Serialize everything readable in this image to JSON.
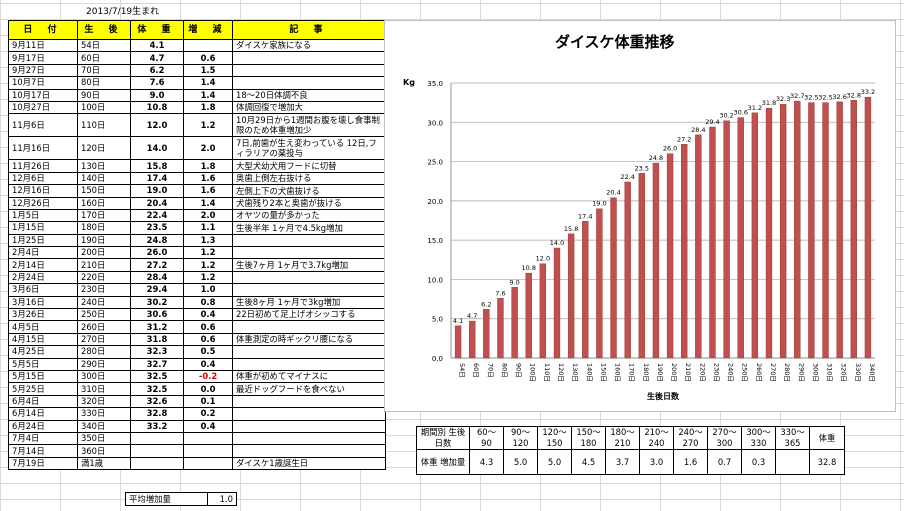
{
  "birth_note": "2013/7/19生まれ",
  "table_headers": [
    "日 付",
    "生 後",
    "体 重",
    "増 減",
    "記 事"
  ],
  "rows": [
    {
      "date": "9月11日",
      "age": "54日",
      "weight": "4.1",
      "diff": "",
      "note": "ダイスケ家族になる"
    },
    {
      "date": "9月17日",
      "age": "60日",
      "weight": "4.7",
      "diff": "0.6",
      "note": ""
    },
    {
      "date": "9月27日",
      "age": "70日",
      "weight": "6.2",
      "diff": "1.5",
      "note": ""
    },
    {
      "date": "10月7日",
      "age": "80日",
      "weight": "7.6",
      "diff": "1.4",
      "note": ""
    },
    {
      "date": "10月17日",
      "age": "90日",
      "weight": "9.0",
      "diff": "1.4",
      "note": "18～20日体調不良"
    },
    {
      "date": "10月27日",
      "age": "100日",
      "weight": "10.8",
      "diff": "1.8",
      "note": "体調回復で増加大"
    },
    {
      "date": "11月6日",
      "age": "110日",
      "weight": "12.0",
      "diff": "1.2",
      "note": "10月29日から1週間お腹を壊し食事制限のため体重増加少",
      "tall": true
    },
    {
      "date": "11月16日",
      "age": "120日",
      "weight": "14.0",
      "diff": "2.0",
      "note": "7日,前歯が生え変わっている 12日,フィラリアの薬投与",
      "tall": true
    },
    {
      "date": "11月26日",
      "age": "130日",
      "weight": "15.8",
      "diff": "1.8",
      "note": "大型犬幼犬用フードに切替"
    },
    {
      "date": "12月6日",
      "age": "140日",
      "weight": "17.4",
      "diff": "1.6",
      "note": "奥歯上側左右抜ける"
    },
    {
      "date": "12月16日",
      "age": "150日",
      "weight": "19.0",
      "diff": "1.6",
      "note": "左側上下の犬歯抜ける"
    },
    {
      "date": "12月26日",
      "age": "160日",
      "weight": "20.4",
      "diff": "1.4",
      "note": "犬歯残り2本と奥歯が抜ける"
    },
    {
      "date": "1月5日",
      "age": "170日",
      "weight": "22.4",
      "diff": "2.0",
      "note": "オヤツの量が多かった"
    },
    {
      "date": "1月15日",
      "age": "180日",
      "weight": "23.5",
      "diff": "1.1",
      "note": "生後半年 1ヶ月で4.5kg増加"
    },
    {
      "date": "1月25日",
      "age": "190日",
      "weight": "24.8",
      "diff": "1.3",
      "note": ""
    },
    {
      "date": "2月4日",
      "age": "200日",
      "weight": "26.0",
      "diff": "1.2",
      "note": ""
    },
    {
      "date": "2月14日",
      "age": "210日",
      "weight": "27.2",
      "diff": "1.2",
      "note": "生後7ヶ月 1ヶ月で3.7kg増加"
    },
    {
      "date": "2月24日",
      "age": "220日",
      "weight": "28.4",
      "diff": "1.2",
      "note": ""
    },
    {
      "date": "3月6日",
      "age": "230日",
      "weight": "29.4",
      "diff": "1.0",
      "note": ""
    },
    {
      "date": "3月16日",
      "age": "240日",
      "weight": "30.2",
      "diff": "0.8",
      "note": "生後8ヶ月 1ヶ月で3kg増加"
    },
    {
      "date": "3月26日",
      "age": "250日",
      "weight": "30.6",
      "diff": "0.4",
      "note": "22日初めて足上げオシッコする"
    },
    {
      "date": "4月5日",
      "age": "260日",
      "weight": "31.2",
      "diff": "0.6",
      "note": ""
    },
    {
      "date": "4月15日",
      "age": "270日",
      "weight": "31.8",
      "diff": "0.6",
      "note": "体重測定の時ギックリ腰になる"
    },
    {
      "date": "4月25日",
      "age": "280日",
      "weight": "32.3",
      "diff": "0.5",
      "note": ""
    },
    {
      "date": "5月5日",
      "age": "290日",
      "weight": "32.7",
      "diff": "0.4",
      "note": ""
    },
    {
      "date": "5月15日",
      "age": "300日",
      "weight": "32.5",
      "diff": "-0.2",
      "note": "体重が初めてマイナスに",
      "neg": true
    },
    {
      "date": "5月25日",
      "age": "310日",
      "weight": "32.5",
      "diff": "0.0",
      "note": "最近ドッグフードを食べない"
    },
    {
      "date": "6月4日",
      "age": "320日",
      "weight": "32.6",
      "diff": "0.1",
      "note": ""
    },
    {
      "date": "6月14日",
      "age": "330日",
      "weight": "32.8",
      "diff": "0.2",
      "note": ""
    },
    {
      "date": "6月24日",
      "age": "340日",
      "weight": "33.2",
      "diff": "0.4",
      "note": ""
    },
    {
      "date": "7月4日",
      "age": "350日",
      "weight": "",
      "diff": "",
      "note": ""
    },
    {
      "date": "7月14日",
      "age": "360日",
      "weight": "",
      "diff": "",
      "note": ""
    },
    {
      "date": "7月19日",
      "age": "満1歳",
      "weight": "",
      "diff": "",
      "note": "ダイスケ1歳誕生日"
    }
  ],
  "avg_label": "平均増加量",
  "avg_value": "1.0",
  "period_table": {
    "header_label": "期間別 生後日数",
    "gain_label": "体重 増加量",
    "periods": [
      "60～ 90",
      "90～ 120",
      "120～ 150",
      "150～ 180",
      "180～ 210",
      "210～ 240",
      "240～ 270",
      "270～ 300",
      "300～ 330",
      "330～ 365"
    ],
    "gains": [
      "4.3",
      "5.0",
      "5.0",
      "4.5",
      "3.7",
      "3.0",
      "1.6",
      "0.7",
      "0.3",
      ""
    ],
    "weight_label": "体重",
    "weight_value": "32.8"
  },
  "chart_data": {
    "type": "bar",
    "title": "ダイスケ体重推移",
    "xlabel": "生後日数",
    "ylabel": "Kg",
    "ylim": [
      0,
      35
    ],
    "yticks": [
      "0.0",
      "5.0",
      "10.0",
      "15.0",
      "20.0",
      "25.0",
      "30.0",
      "35.0"
    ],
    "grid": true,
    "bar_color": "#c0504d",
    "categories": [
      "54日",
      "60日",
      "70日",
      "80日",
      "90日",
      "100日",
      "110日",
      "120日",
      "130日",
      "140日",
      "150日",
      "160日",
      "170日",
      "180日",
      "190日",
      "200日",
      "210日",
      "220日",
      "230日",
      "240日",
      "250日",
      "260日",
      "270日",
      "280日",
      "290日",
      "300日",
      "310日",
      "320日",
      "330日",
      "340日"
    ],
    "values": [
      4.1,
      4.7,
      6.2,
      7.6,
      9.0,
      10.8,
      12.0,
      14.0,
      15.8,
      17.4,
      19.0,
      20.4,
      22.4,
      23.5,
      24.8,
      26.0,
      27.2,
      28.4,
      29.4,
      30.2,
      30.6,
      31.2,
      31.8,
      32.3,
      32.7,
      32.5,
      32.5,
      32.6,
      32.8,
      33.2
    ],
    "labels": [
      "4.1",
      "4.7",
      "6.2",
      "7.6",
      "9.0",
      "10.8",
      "12.0",
      "14.0",
      "15.8",
      "17.4",
      "19.0",
      "20.4",
      "22.4",
      "23.5",
      "24.8",
      "26.0",
      "27.2",
      "28.4",
      "29.4",
      "30.2",
      "30.6",
      "31.2",
      "31.8",
      "32.3",
      "32.7",
      "32.5",
      "32.5",
      "32.6",
      "32.8",
      "33.2"
    ]
  }
}
